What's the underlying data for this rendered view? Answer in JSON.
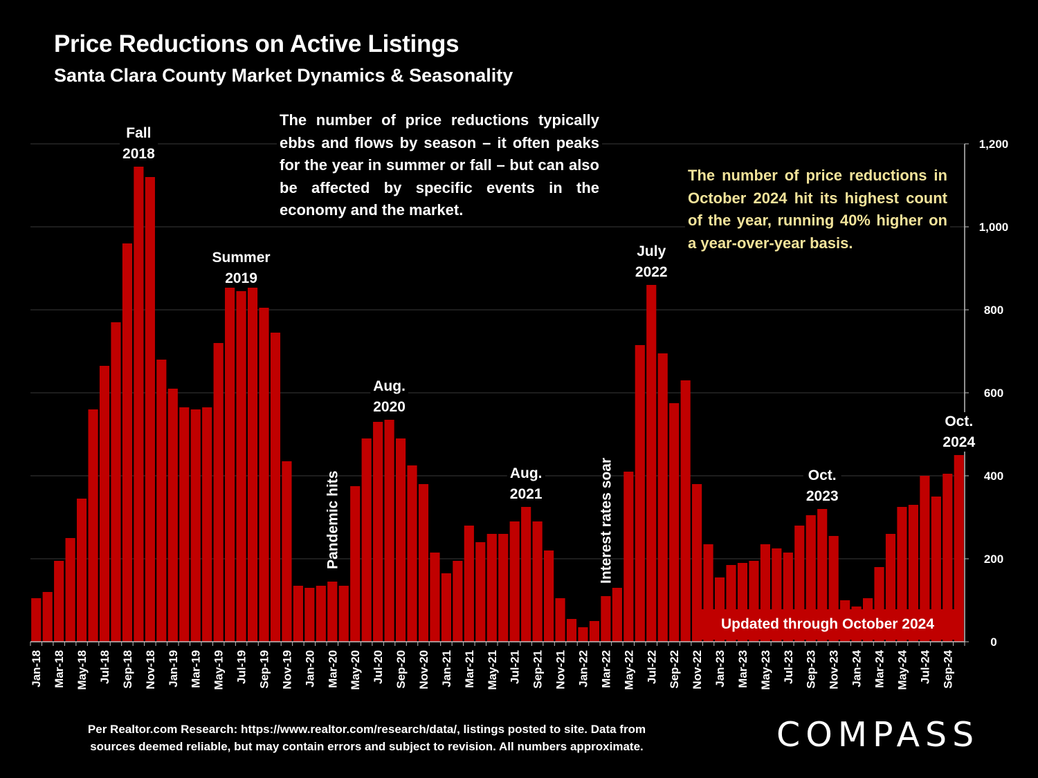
{
  "title": "Price Reductions on Active Listings",
  "subtitle": "Santa Clara County Market Dynamics & Seasonality",
  "note_white": "The number of price reductions typically ebbs and flows by season – it often peaks for the year in summer or fall – but can also be affected by specific events in the economy and the market.",
  "note_yellow": "The number of price reductions in October 2024 hit its highest count of the year, running 40% higher on a year-over-year basis.",
  "badge": "Updated through October 2024",
  "source": "Per Realtor.com Research:  https://www.realtor.com/research/data/, listings posted to site. Data from sources deemed reliable, but may contain errors and subject to revision. All numbers approximate.",
  "logo": "COMPASS",
  "colors": {
    "bar": "#c00000",
    "background": "#000000",
    "highlight_text": "#f2e39a",
    "grid": "#3a3a3a"
  },
  "chart_data": {
    "type": "bar",
    "categories": [
      "Jan-18",
      "Feb-18",
      "Mar-18",
      "Apr-18",
      "May-18",
      "Jun-18",
      "Jul-18",
      "Aug-18",
      "Sep-18",
      "Oct-18",
      "Nov-18",
      "Dec-18",
      "Jan-19",
      "Feb-19",
      "Mar-19",
      "Apr-19",
      "May-19",
      "Jun-19",
      "Jul-19",
      "Aug-19",
      "Sep-19",
      "Oct-19",
      "Nov-19",
      "Dec-19",
      "Jan-20",
      "Feb-20",
      "Mar-20",
      "Apr-20",
      "May-20",
      "Jun-20",
      "Jul-20",
      "Aug-20",
      "Sep-20",
      "Oct-20",
      "Nov-20",
      "Dec-20",
      "Jan-21",
      "Feb-21",
      "Mar-21",
      "Apr-21",
      "May-21",
      "Jun-21",
      "Jul-21",
      "Aug-21",
      "Sep-21",
      "Oct-21",
      "Nov-21",
      "Dec-21",
      "Jan-22",
      "Feb-22",
      "Mar-22",
      "Apr-22",
      "May-22",
      "Jun-22",
      "Jul-22",
      "Aug-22",
      "Sep-22",
      "Oct-22",
      "Nov-22",
      "Dec-22",
      "Jan-23",
      "Feb-23",
      "Mar-23",
      "Apr-23",
      "May-23",
      "Jun-23",
      "Jul-23",
      "Aug-23",
      "Sep-23",
      "Oct-23",
      "Nov-23",
      "Dec-23",
      "Jan-24",
      "Feb-24",
      "Mar-24",
      "Apr-24",
      "May-24",
      "Jun-24",
      "Jul-24",
      "Aug-24",
      "Sep-24",
      "Oct-24"
    ],
    "tick_labels": [
      "Jan-18",
      "Mar-18",
      "May-18",
      "Jul-18",
      "Sep-18",
      "Nov-18",
      "Jan-19",
      "Mar-19",
      "May-19",
      "Jul-19",
      "Sep-19",
      "Nov-19",
      "Jan-20",
      "Mar-20",
      "May-20",
      "Jul-20",
      "Sep-20",
      "Nov-20",
      "Jan-21",
      "Mar-21",
      "May-21",
      "Jul-21",
      "Sep-21",
      "Nov-21",
      "Jan-22",
      "Mar-22",
      "May-22",
      "Jul-22",
      "Sep-22",
      "Nov-22",
      "Jan-23",
      "Mar-23",
      "May-23",
      "Jul-23",
      "Sep-23",
      "Nov-23",
      "Jan-24",
      "Mar-24",
      "May-24",
      "Jul-24",
      "Sep-24"
    ],
    "values": [
      105,
      120,
      195,
      250,
      345,
      560,
      665,
      770,
      960,
      1145,
      1120,
      680,
      610,
      565,
      560,
      565,
      720,
      875,
      845,
      870,
      805,
      745,
      435,
      135,
      130,
      135,
      145,
      135,
      375,
      490,
      530,
      535,
      490,
      425,
      380,
      215,
      165,
      195,
      280,
      240,
      260,
      260,
      290,
      325,
      290,
      220,
      105,
      55,
      35,
      50,
      110,
      130,
      410,
      715,
      860,
      695,
      575,
      630,
      380,
      235,
      155,
      185,
      190,
      195,
      235,
      225,
      215,
      280,
      305,
      320,
      255,
      100,
      85,
      105,
      180,
      260,
      325,
      330,
      400,
      350,
      405,
      450
    ],
    "y_axis": {
      "ticks": [
        0,
        200,
        400,
        600,
        800,
        "1,000",
        "1,200"
      ],
      "tick_values": [
        0,
        200,
        400,
        600,
        800,
        1000,
        1200
      ],
      "range": [
        0,
        1200
      ],
      "position": "right"
    },
    "gridlines": true,
    "legend": "none",
    "annotations": [
      {
        "text": [
          "Fall",
          "2018"
        ],
        "category": "Oct-18"
      },
      {
        "text": [
          "Summer",
          "2019"
        ],
        "category": "Jul-19"
      },
      {
        "text": [
          "Aug.",
          "2020"
        ],
        "category": "Aug-20"
      },
      {
        "text": [
          "Aug.",
          "2021"
        ],
        "category": "Aug-21"
      },
      {
        "text": [
          "July",
          "2022"
        ],
        "category": "Jul-22"
      },
      {
        "text": [
          "Oct.",
          "2023"
        ],
        "category": "Oct-23"
      },
      {
        "text": [
          "Oct.",
          "2024"
        ],
        "category": "Oct-24"
      },
      {
        "text": [
          "Pandemic hits"
        ],
        "category": "Mar-20",
        "rotated": true
      },
      {
        "text": [
          "Interest rates soar"
        ],
        "category": "Mar-22",
        "rotated": true
      }
    ]
  }
}
